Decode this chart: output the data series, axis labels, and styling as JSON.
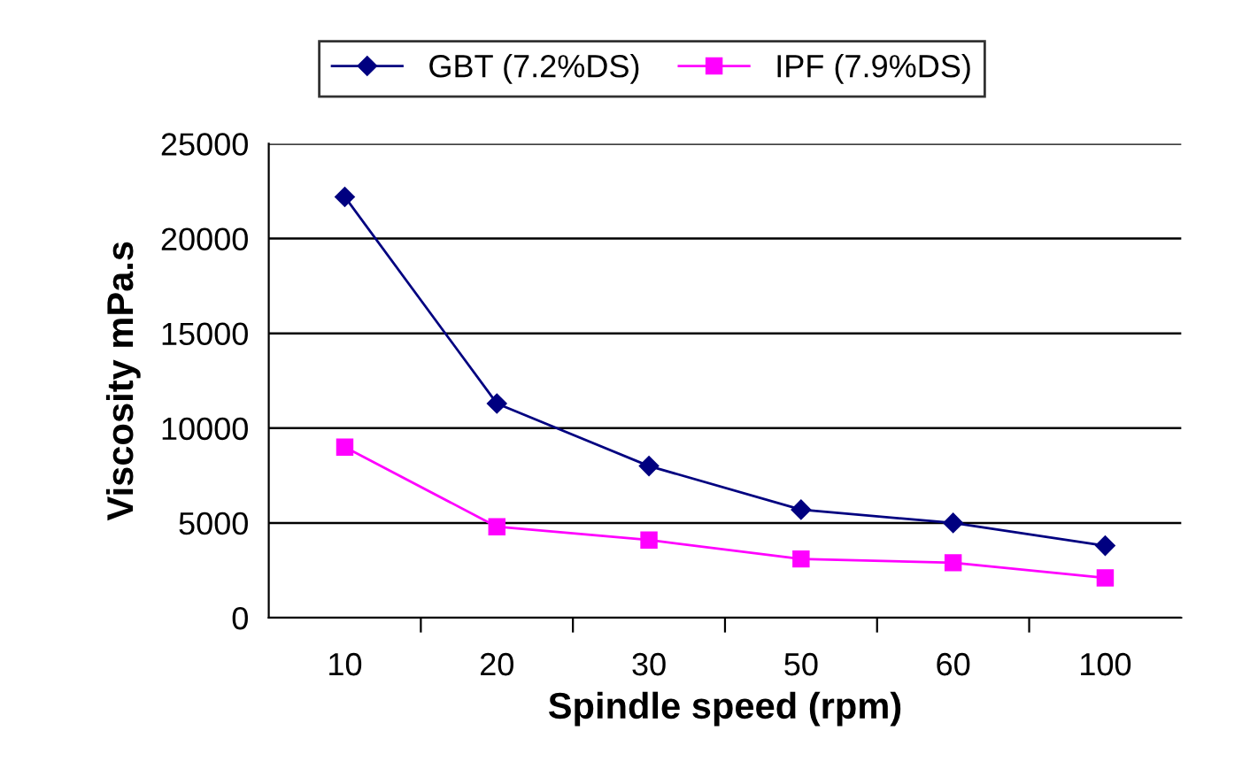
{
  "chart_data": {
    "type": "line",
    "xlabel": "Spindle speed (rpm)",
    "ylabel": "Viscosity mPa.s",
    "categories": [
      "10",
      "20",
      "30",
      "50",
      "60",
      "100"
    ],
    "series": [
      {
        "name": "GBT (7.2%DS)",
        "color": "#000080",
        "marker": "diamond",
        "values": [
          22200,
          11300,
          8000,
          5700,
          5000,
          3800
        ]
      },
      {
        "name": "IPF (7.9%DS)",
        "color": "#ff00ff",
        "marker": "square",
        "values": [
          9000,
          4800,
          4100,
          3100,
          2900,
          2100
        ]
      }
    ],
    "ylim": [
      0,
      25000
    ],
    "yticks": [
      0,
      5000,
      10000,
      15000,
      20000,
      25000
    ],
    "grid": "y",
    "legend": "top"
  }
}
